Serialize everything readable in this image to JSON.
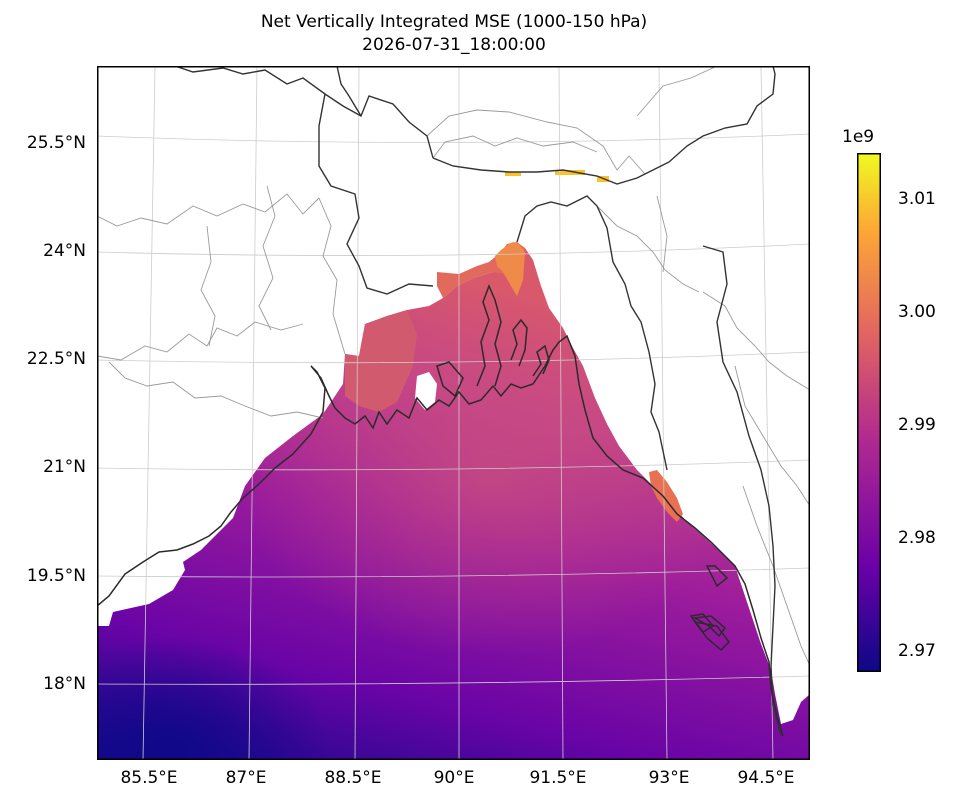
{
  "title": {
    "line1": "Net Vertically Integrated MSE (1000-150 hPa)",
    "line2": "2026-07-31_18:00:00"
  },
  "axes": {
    "y_ticks": [
      "25.5°N",
      "24°N",
      "22.5°N",
      "21°N",
      "19.5°N",
      "18°N"
    ],
    "x_ticks": [
      "85.5°E",
      "87°E",
      "88.5°E",
      "90°E",
      "91.5°E",
      "93°E",
      "94.5°E"
    ]
  },
  "colorbar": {
    "exponent": "1e9",
    "ticks": [
      "3.01",
      "3.00",
      "2.99",
      "2.98",
      "2.97"
    ],
    "colormap": "plasma",
    "range": [
      2.968,
      3.014
    ],
    "colors": [
      "#0d0887",
      "#6a00a8",
      "#b12a90",
      "#e16462",
      "#fca636",
      "#f0f921"
    ]
  },
  "map": {
    "region": "Bay of Bengal",
    "projection": "lambert",
    "field": "plasma-shaded ocean field, land masked white",
    "gridlines": true,
    "features": [
      "coastline-icon",
      "country-borders-icon",
      "state-borders-icon"
    ]
  }
}
